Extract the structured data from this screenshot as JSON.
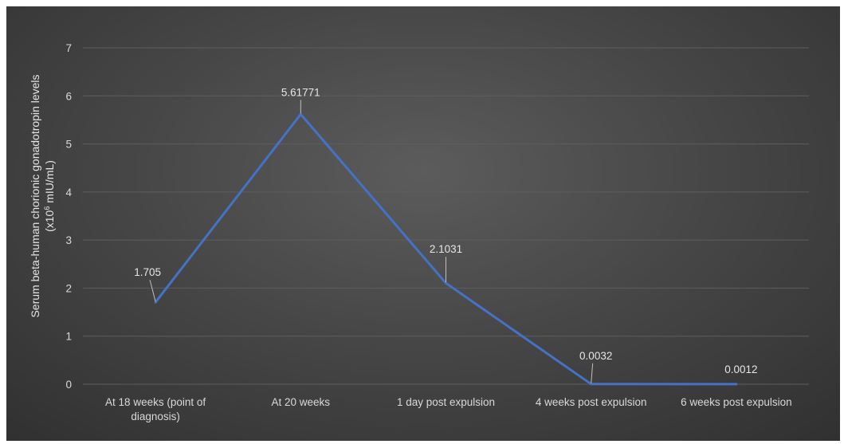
{
  "chart_data": {
    "type": "line",
    "title": "",
    "xlabel": "",
    "ylabel": {
      "line1": "Serum beta-human chorionic gonadotropin levels",
      "line2_prefix": "(x10",
      "line2_sup": "6",
      "line2_suffix": " mIU/mL)"
    },
    "ylim": [
      0,
      7
    ],
    "yticks": [
      "0",
      "1",
      "2",
      "3",
      "4",
      "5",
      "6",
      "7"
    ],
    "categories": [
      [
        "At 18 weeks (point of",
        "diagnosis)"
      ],
      [
        "At 20 weeks"
      ],
      [
        "1 day post expulsion"
      ],
      [
        "4 weeks post expulsion"
      ],
      [
        "6 weeks post expulsion"
      ]
    ],
    "series": [
      {
        "values": [
          1.705,
          5.61771,
          2.1031,
          0.0032,
          0.0012
        ],
        "labels": [
          "1.705",
          "5.61771",
          "2.1031",
          "0.0032",
          "0.0012"
        ],
        "color": "#4472c4"
      }
    ],
    "grid": true,
    "legend": "none"
  }
}
